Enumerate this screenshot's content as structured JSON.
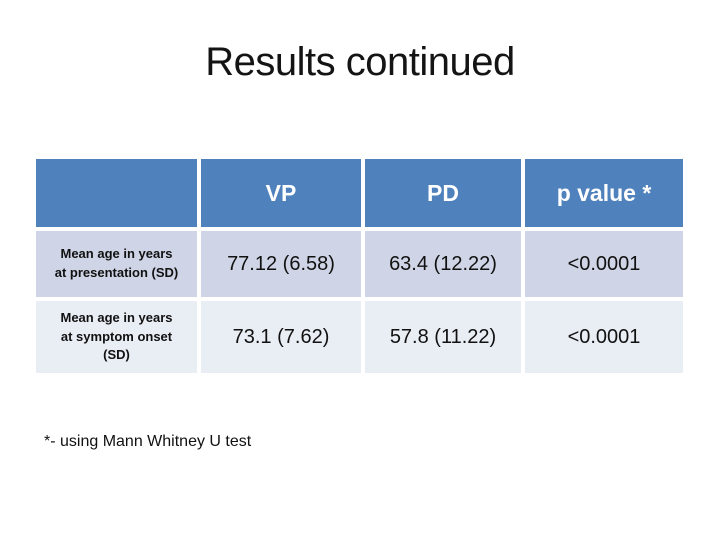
{
  "slide": {
    "title": "Results continued",
    "footnote": "*- using Mann Whitney U test",
    "background": "#ffffff"
  },
  "table": {
    "headers": [
      "",
      "VP",
      "PD",
      "p value *"
    ],
    "rows": [
      {
        "label_lines": [
          "Mean age in years",
          "at presentation (SD)"
        ],
        "vp": "77.12 (6.58)",
        "pd": "63.4 (12.22)",
        "p_value": "<0.0001"
      },
      {
        "label_lines": [
          "Mean age in years",
          "at symptom onset",
          "(SD)"
        ],
        "vp": "73.1 (7.62)",
        "pd": "57.8 (11.22)",
        "p_value": "<0.0001"
      }
    ]
  },
  "colors": {
    "header_bg": "#4f81bd",
    "header_text": "#ffffff",
    "row1_bg": "#cfd5e6",
    "row2_bg": "#e9edf4",
    "body_text": "#111111",
    "title_text": "#141414"
  }
}
